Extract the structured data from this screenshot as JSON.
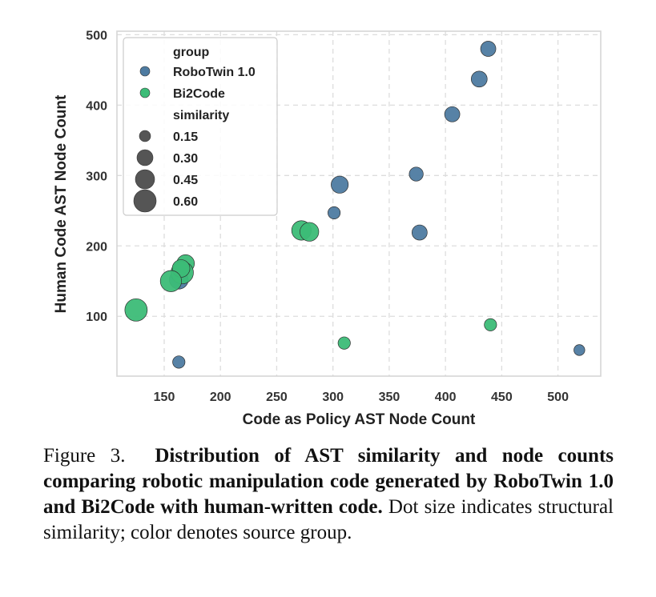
{
  "chart_data": {
    "type": "scatter",
    "xlabel": "Code as Policy AST Node Count",
    "ylabel": "Human Code AST Node Count",
    "xlim": [
      108,
      538
    ],
    "ylim": [
      15,
      505
    ],
    "xticks": [
      150,
      200,
      250,
      300,
      350,
      400,
      450,
      500
    ],
    "yticks": [
      100,
      200,
      300,
      400,
      500
    ],
    "grid": true,
    "legend_placement": "top-left",
    "legend": {
      "group_title": "group",
      "groups": [
        {
          "name": "RoboTwin 1.0",
          "color": "#4e7ba1"
        },
        {
          "name": "Bi2Code",
          "color": "#3cbc77"
        }
      ],
      "size_title": "similarity",
      "sizes": [
        {
          "label": "0.15",
          "value": 0.15
        },
        {
          "label": "0.30",
          "value": 0.3
        },
        {
          "label": "0.45",
          "value": 0.45
        },
        {
          "label": "0.60",
          "value": 0.6
        }
      ]
    },
    "series": [
      {
        "name": "RoboTwin 1.0",
        "color": "#4e7ba1",
        "points": [
          {
            "x": 438,
            "y": 480,
            "similarity": 0.3
          },
          {
            "x": 430,
            "y": 437,
            "similarity": 0.33
          },
          {
            "x": 406,
            "y": 387,
            "similarity": 0.3
          },
          {
            "x": 306,
            "y": 287,
            "similarity": 0.38
          },
          {
            "x": 374,
            "y": 302,
            "similarity": 0.25
          },
          {
            "x": 301,
            "y": 247,
            "similarity": 0.18
          },
          {
            "x": 377,
            "y": 219,
            "similarity": 0.3
          },
          {
            "x": 163,
            "y": 152,
            "similarity": 0.45
          },
          {
            "x": 163,
            "y": 35,
            "similarity": 0.18
          },
          {
            "x": 519,
            "y": 52,
            "similarity": 0.12
          }
        ]
      },
      {
        "name": "Bi2Code",
        "color": "#3cbc77",
        "points": [
          {
            "x": 272,
            "y": 222,
            "similarity": 0.48
          },
          {
            "x": 279,
            "y": 220,
            "similarity": 0.45
          },
          {
            "x": 169,
            "y": 175,
            "similarity": 0.4
          },
          {
            "x": 166,
            "y": 162,
            "similarity": 0.6
          },
          {
            "x": 165,
            "y": 168,
            "similarity": 0.4
          },
          {
            "x": 156,
            "y": 150,
            "similarity": 0.55
          },
          {
            "x": 125,
            "y": 109,
            "similarity": 0.6
          },
          {
            "x": 440,
            "y": 88,
            "similarity": 0.18
          },
          {
            "x": 310,
            "y": 62,
            "similarity": 0.18
          }
        ]
      }
    ]
  },
  "caption": {
    "prefix": "Figure 3.",
    "bold": "Distribution of AST similarity and node counts comparing robotic manipulation code generated by RoboTwin 1.0 and Bi2Code with human-written code.",
    "rest": "Dot size indicates structural similarity; color denotes source group."
  }
}
